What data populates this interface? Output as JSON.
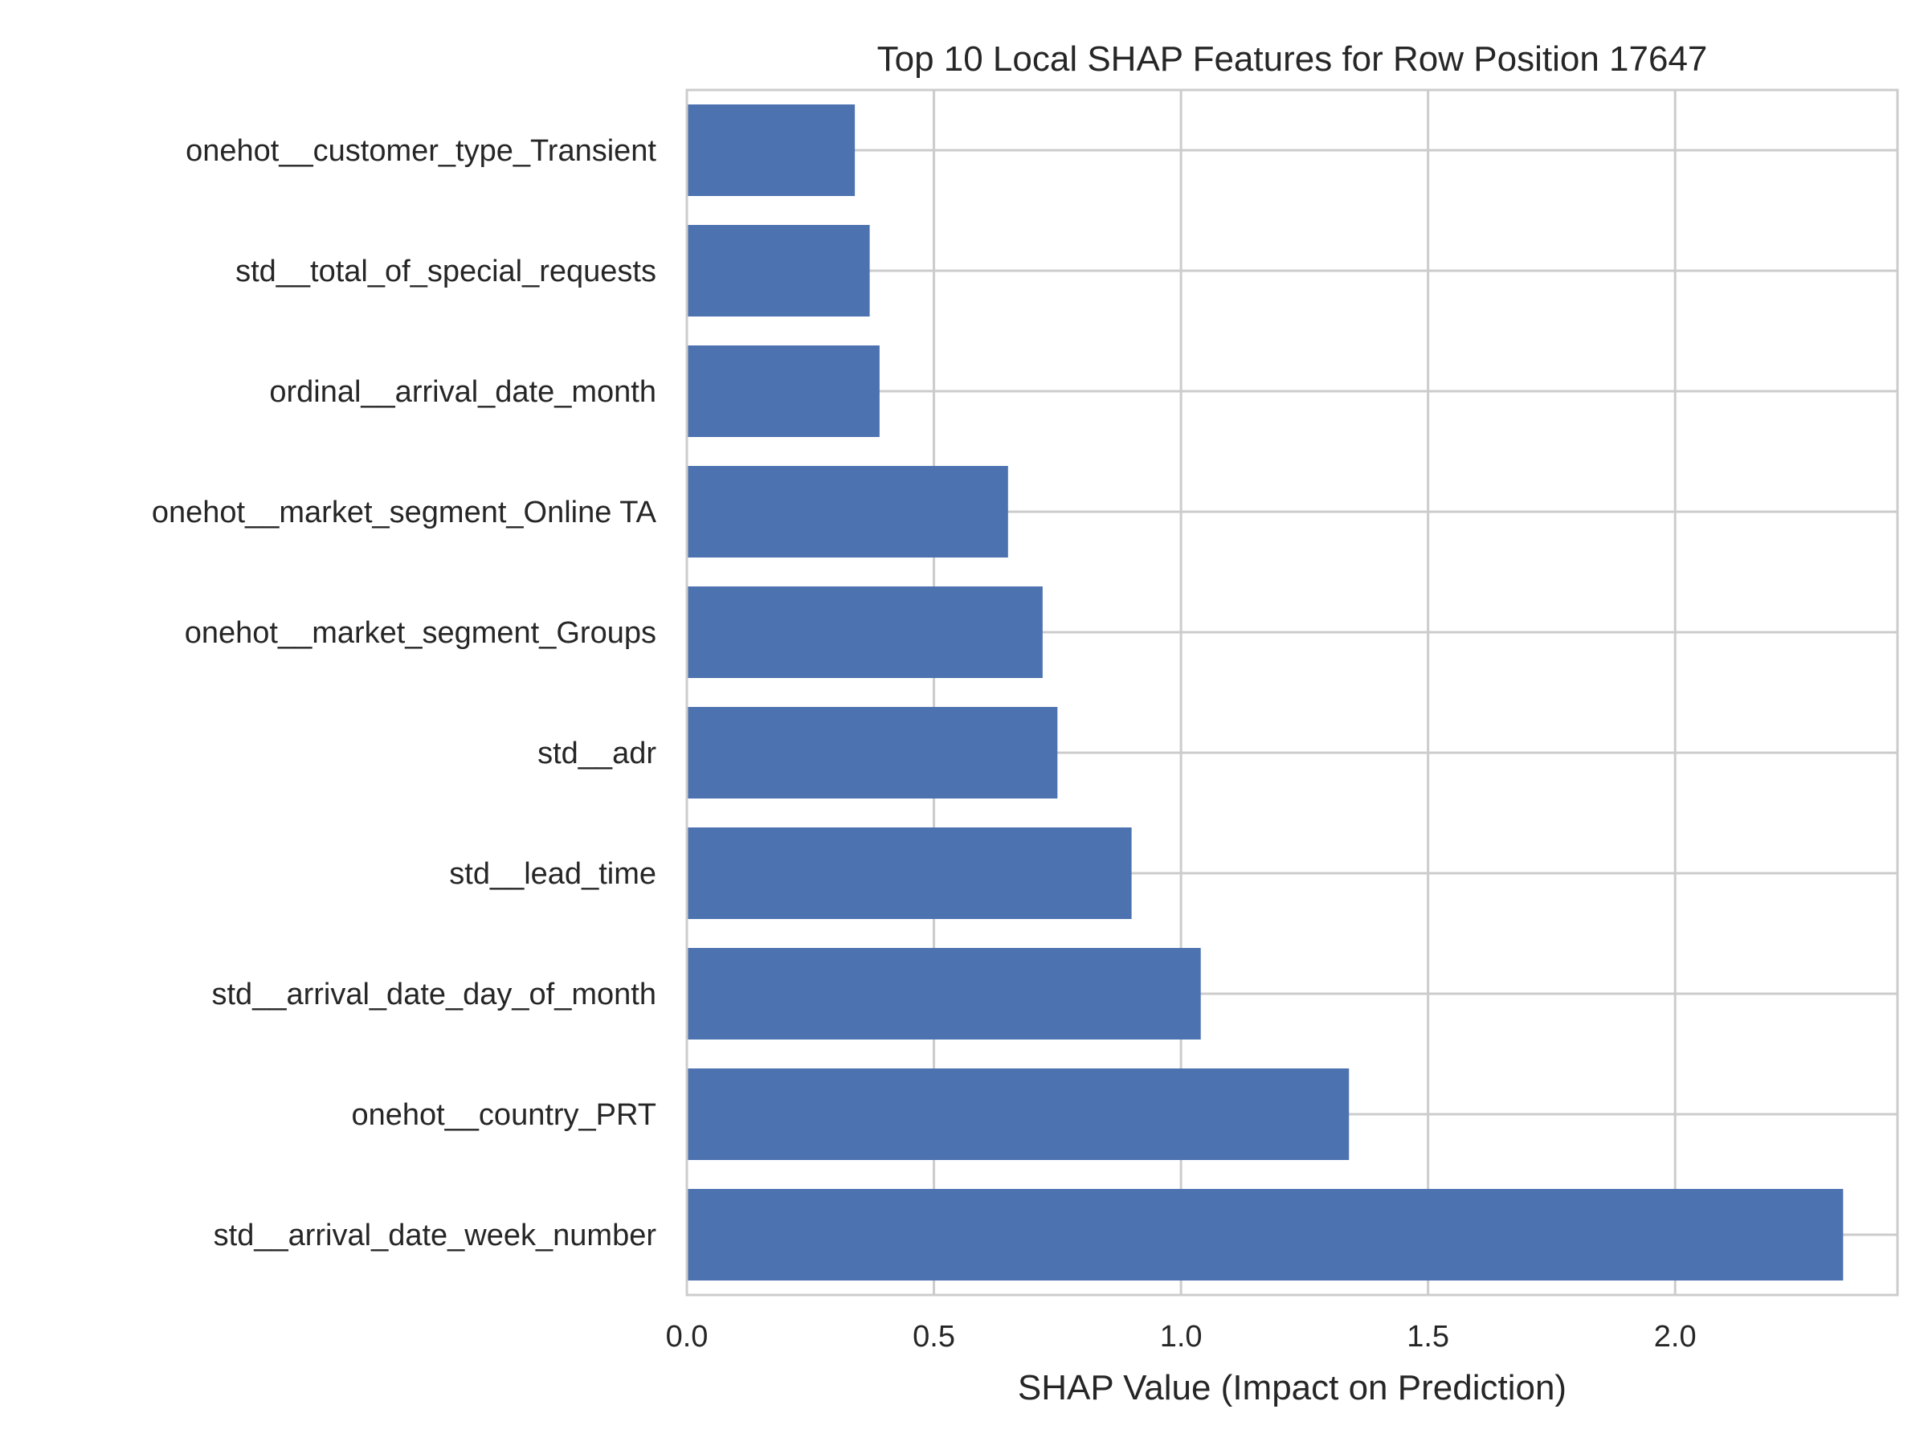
{
  "chart_data": {
    "type": "bar",
    "orientation": "horizontal",
    "title": "Top 10 Local SHAP Features for Row Position 17647",
    "xlabel": "SHAP Value (Impact on Prediction)",
    "ylabel": "",
    "xlim": [
      0,
      2.45
    ],
    "x_ticks": [
      "0.0",
      "0.5",
      "1.0",
      "1.5",
      "2.0"
    ],
    "grid": true,
    "categories": [
      "onehot__customer_type_Transient",
      "std__total_of_special_requests",
      "ordinal__arrival_date_month",
      "onehot__market_segment_Online TA",
      "onehot__market_segment_Groups",
      "std__adr",
      "std__lead_time",
      "std__arrival_date_day_of_month",
      "onehot__country_PRT",
      "std__arrival_date_week_number"
    ],
    "values": [
      0.34,
      0.37,
      0.39,
      0.65,
      0.72,
      0.75,
      0.9,
      1.04,
      1.34,
      2.34
    ],
    "colors": {
      "bar": "#4c72b0",
      "grid": "#cccccc"
    }
  }
}
